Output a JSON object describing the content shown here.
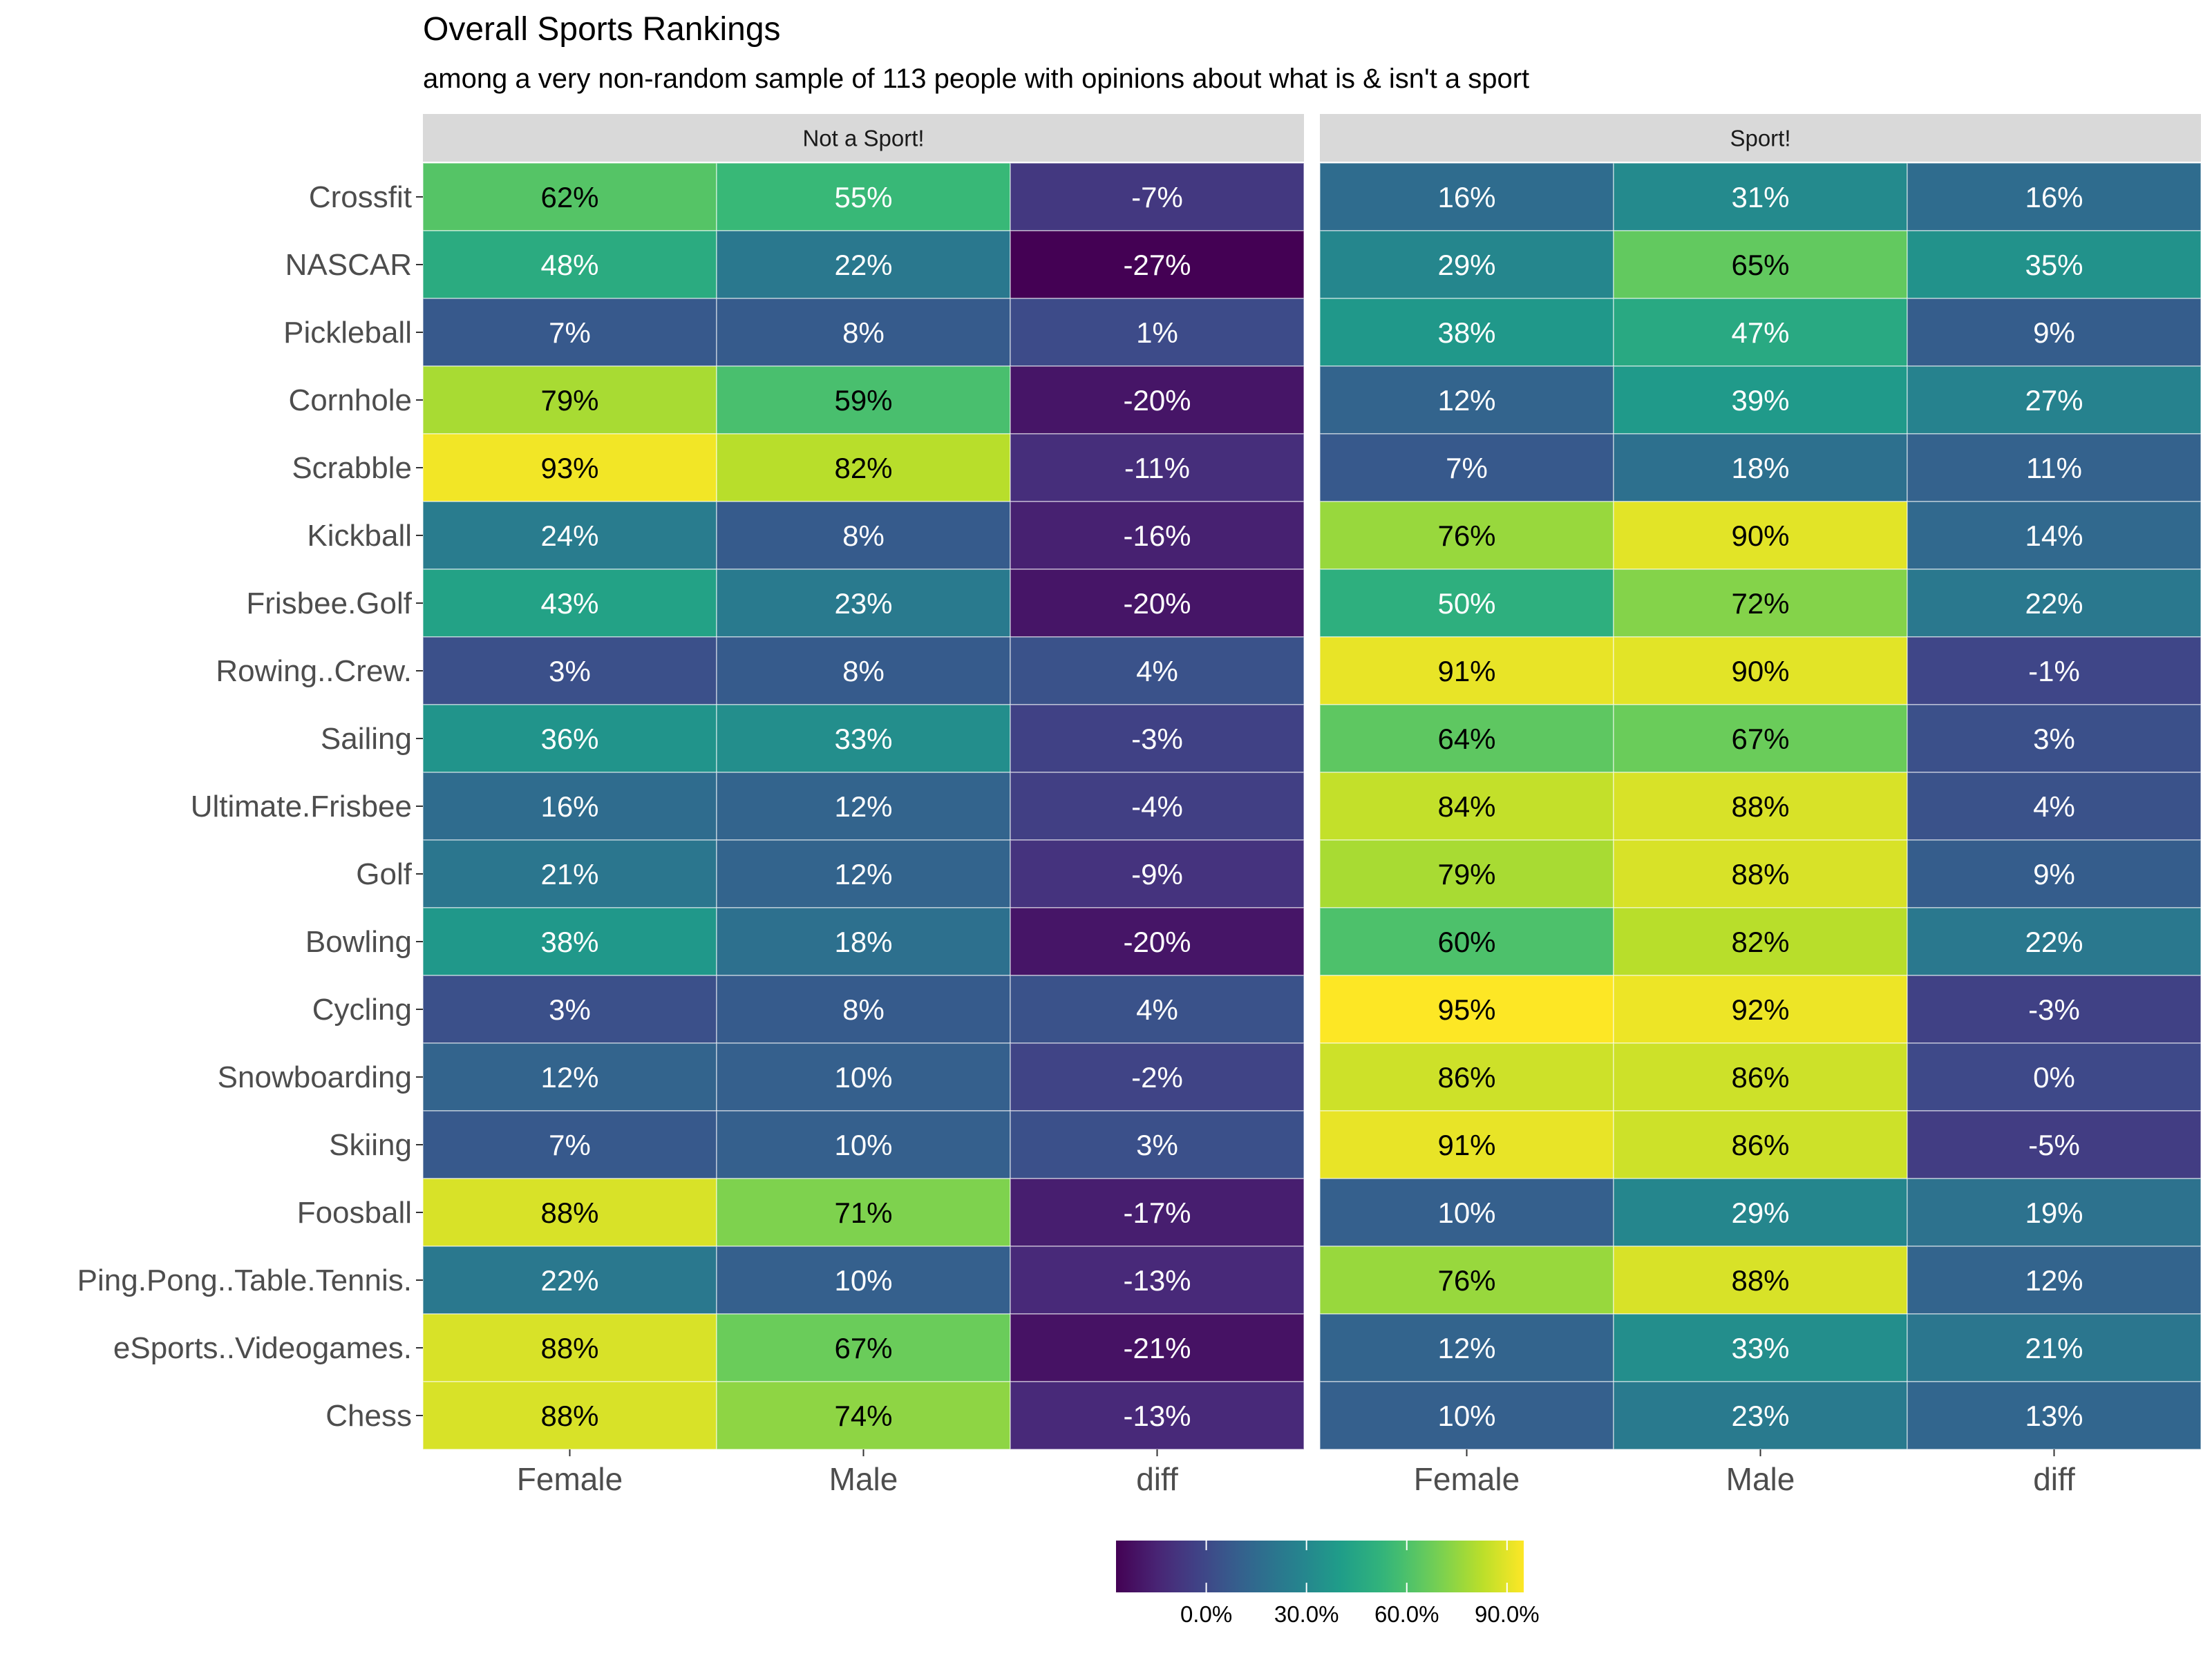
{
  "chart_data": {
    "type": "heatmap",
    "title": "Overall Sports Rankings",
    "subtitle": "among a very non-random sample of 113 people with opinions about what is & isn't a sport",
    "rows": [
      "Crossfit",
      "NASCAR",
      "Pickleball",
      "Cornhole",
      "Scrabble",
      "Kickball",
      "Frisbee.Golf",
      "Rowing..Crew.",
      "Sailing",
      "Ultimate.Frisbee",
      "Golf",
      "Bowling",
      "Cycling",
      "Snowboarding",
      "Skiing",
      "Foosball",
      "Ping.Pong..Table.Tennis.",
      "eSports..Videogames.",
      "Chess"
    ],
    "columns": [
      "Female",
      "Male",
      "diff"
    ],
    "panels": [
      {
        "label": "Not a Sport!",
        "values": [
          [
            62,
            55,
            -7
          ],
          [
            48,
            22,
            -27
          ],
          [
            7,
            8,
            1
          ],
          [
            79,
            59,
            -20
          ],
          [
            93,
            82,
            -11
          ],
          [
            24,
            8,
            -16
          ],
          [
            43,
            23,
            -20
          ],
          [
            3,
            8,
            4
          ],
          [
            36,
            33,
            -3
          ],
          [
            16,
            12,
            -4
          ],
          [
            21,
            12,
            -9
          ],
          [
            38,
            18,
            -20
          ],
          [
            3,
            8,
            4
          ],
          [
            12,
            10,
            -2
          ],
          [
            7,
            10,
            3
          ],
          [
            88,
            71,
            -17
          ],
          [
            22,
            10,
            -13
          ],
          [
            88,
            67,
            -21
          ],
          [
            88,
            74,
            -13
          ]
        ]
      },
      {
        "label": "Sport!",
        "values": [
          [
            16,
            31,
            16
          ],
          [
            29,
            65,
            35
          ],
          [
            38,
            47,
            9
          ],
          [
            12,
            39,
            27
          ],
          [
            7,
            18,
            11
          ],
          [
            76,
            90,
            14
          ],
          [
            50,
            72,
            22
          ],
          [
            91,
            90,
            -1
          ],
          [
            64,
            67,
            3
          ],
          [
            84,
            88,
            4
          ],
          [
            79,
            88,
            9
          ],
          [
            60,
            82,
            22
          ],
          [
            95,
            92,
            -3
          ],
          [
            86,
            86,
            0
          ],
          [
            91,
            86,
            -5
          ],
          [
            10,
            29,
            19
          ],
          [
            76,
            88,
            12
          ],
          [
            12,
            33,
            21
          ],
          [
            10,
            23,
            13
          ]
        ]
      }
    ],
    "value_suffix": "%",
    "color_scale": {
      "name": "viridis",
      "domain": [
        -27,
        95
      ],
      "breaks": [
        0,
        30,
        60,
        90
      ],
      "break_labels": [
        "0.0%",
        "30.0%",
        "60.0%",
        "90.0%"
      ],
      "colors": [
        "#440154",
        "#482878",
        "#3e4989",
        "#31688e",
        "#26828e",
        "#1f9e89",
        "#35b779",
        "#6ece58",
        "#b5de2b",
        "#fde725"
      ]
    },
    "strip_color": "#d9d9d9",
    "legend_position": "bottom"
  }
}
